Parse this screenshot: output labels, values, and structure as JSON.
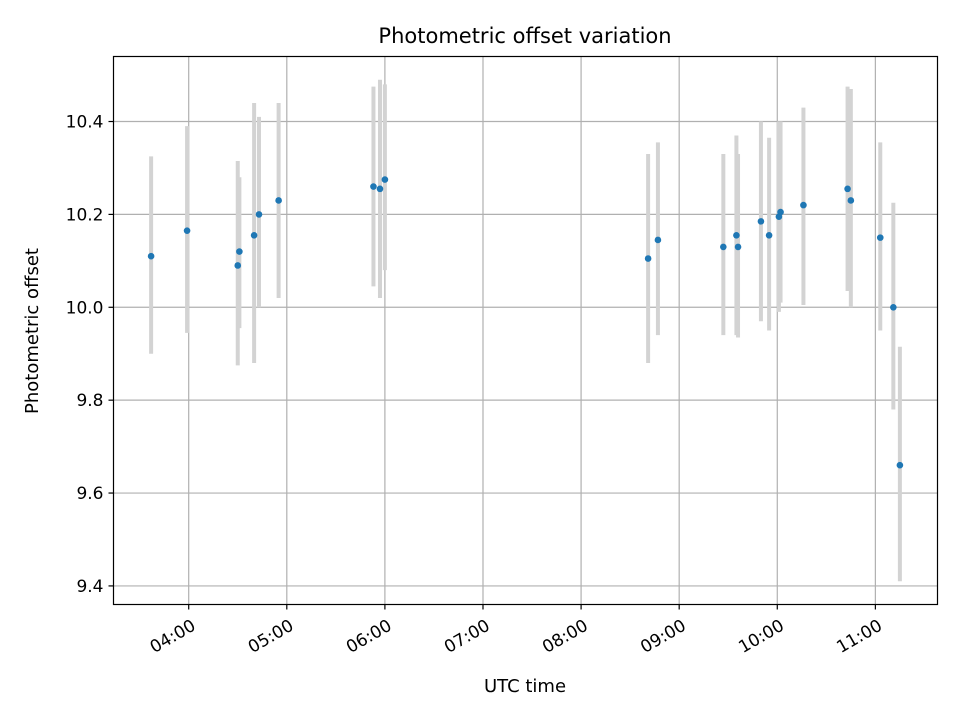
{
  "chart_data": {
    "type": "scatter",
    "title": "Photometric offset variation",
    "xlabel": "UTC time",
    "ylabel": "Photometric offset",
    "x_range": [
      "03:14",
      "11:38"
    ],
    "ylim": [
      9.36,
      10.54
    ],
    "x_ticks": [
      "04:00",
      "05:00",
      "06:00",
      "07:00",
      "08:00",
      "09:00",
      "10:00",
      "11:00"
    ],
    "y_ticks": [
      9.4,
      9.6,
      9.8,
      10.0,
      10.2,
      10.4
    ],
    "y_tick_labels": [
      "9.4",
      "9.6",
      "9.8",
      "10.0",
      "10.2",
      "10.4"
    ],
    "grid": true,
    "point_color": "#1f77b4",
    "errorbar_color": "#d3d3d3",
    "points": [
      {
        "x": "03:37",
        "y": 10.11,
        "ylow": 9.9,
        "yhigh": 10.325
      },
      {
        "x": "03:59",
        "y": 10.165,
        "ylow": 9.945,
        "yhigh": 10.39
      },
      {
        "x": "04:30",
        "y": 10.09,
        "ylow": 9.875,
        "yhigh": 10.315
      },
      {
        "x": "04:31",
        "y": 10.12,
        "ylow": 9.955,
        "yhigh": 10.28
      },
      {
        "x": "04:40",
        "y": 10.155,
        "ylow": 9.88,
        "yhigh": 10.44
      },
      {
        "x": "04:43",
        "y": 10.2,
        "ylow": 10.0,
        "yhigh": 10.41
      },
      {
        "x": "04:55",
        "y": 10.23,
        "ylow": 10.02,
        "yhigh": 10.44
      },
      {
        "x": "05:53",
        "y": 10.26,
        "ylow": 10.045,
        "yhigh": 10.475
      },
      {
        "x": "05:57",
        "y": 10.255,
        "ylow": 10.02,
        "yhigh": 10.49
      },
      {
        "x": "06:00",
        "y": 10.275,
        "ylow": 10.08,
        "yhigh": 10.48
      },
      {
        "x": "08:41",
        "y": 10.105,
        "ylow": 9.88,
        "yhigh": 10.33
      },
      {
        "x": "08:47",
        "y": 10.145,
        "ylow": 9.94,
        "yhigh": 10.355
      },
      {
        "x": "09:27",
        "y": 10.13,
        "ylow": 9.94,
        "yhigh": 10.33
      },
      {
        "x": "09:35",
        "y": 10.155,
        "ylow": 9.94,
        "yhigh": 10.37
      },
      {
        "x": "09:36",
        "y": 10.13,
        "ylow": 9.935,
        "yhigh": 10.33
      },
      {
        "x": "09:50",
        "y": 10.185,
        "ylow": 9.97,
        "yhigh": 10.4
      },
      {
        "x": "09:55",
        "y": 10.155,
        "ylow": 9.95,
        "yhigh": 10.365
      },
      {
        "x": "10:01",
        "y": 10.195,
        "ylow": 9.99,
        "yhigh": 10.4
      },
      {
        "x": "10:02",
        "y": 10.205,
        "ylow": 10.01,
        "yhigh": 10.4
      },
      {
        "x": "10:16",
        "y": 10.22,
        "ylow": 10.005,
        "yhigh": 10.43
      },
      {
        "x": "10:43",
        "y": 10.255,
        "ylow": 10.035,
        "yhigh": 10.475
      },
      {
        "x": "10:45",
        "y": 10.23,
        "ylow": 10.0,
        "yhigh": 10.47
      },
      {
        "x": "11:03",
        "y": 10.15,
        "ylow": 9.95,
        "yhigh": 10.355
      },
      {
        "x": "11:11",
        "y": 10.0,
        "ylow": 9.78,
        "yhigh": 10.225
      },
      {
        "x": "11:15",
        "y": 9.66,
        "ylow": 9.41,
        "yhigh": 9.915
      }
    ]
  }
}
